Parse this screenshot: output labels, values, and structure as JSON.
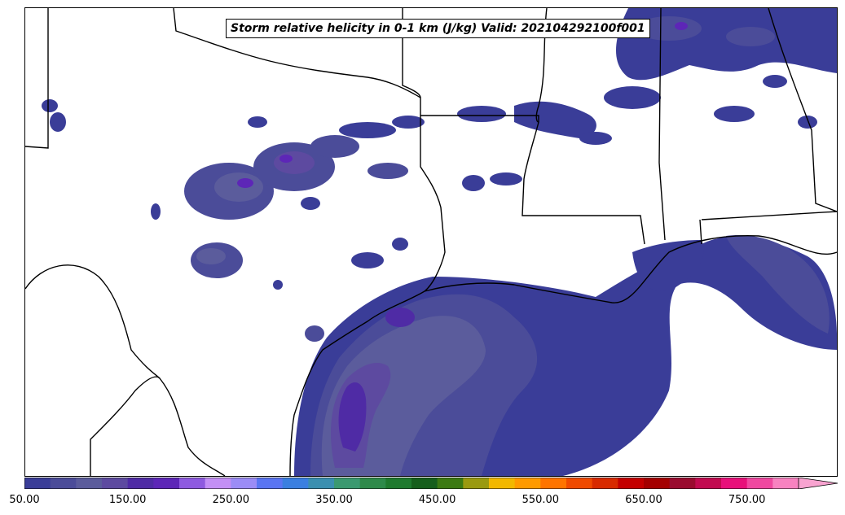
{
  "title": "Storm relative helicity in 0-1 km (J/kg) Valid: 202104292100f001",
  "colorbar": {
    "tick_labels": [
      "50.00",
      "150.00",
      "250.00",
      "350.00",
      "450.00",
      "550.00",
      "650.00",
      "750.00"
    ],
    "levels_start": 50,
    "level_step": 25,
    "extend": "max",
    "colors": [
      "#3a3d98",
      "#4b4c99",
      "#5b5c9c",
      "#5d4aa0",
      "#4f2ba5",
      "#5d26b7",
      "#8e5ae0",
      "#c38ff5",
      "#9b8cf6",
      "#5a75f2",
      "#3a7fe0",
      "#3a8fb0",
      "#3a9970",
      "#2e8a4a",
      "#1f7a2e",
      "#165f1c",
      "#3c7a12",
      "#9a9a10",
      "#f2b800",
      "#ff9a00",
      "#ff7400",
      "#f04a00",
      "#d82a00",
      "#c40000",
      "#a40000",
      "#9a0b2f",
      "#c20a50",
      "#e8107a",
      "#f048a0",
      "#f882c0"
    ],
    "extend_color": "#f8a3d0"
  },
  "map": {
    "region": "Southern Plains and northern Gulf of Mexico",
    "field": "0-1 km storm relative helicity",
    "boundary_color": "#000000"
  }
}
